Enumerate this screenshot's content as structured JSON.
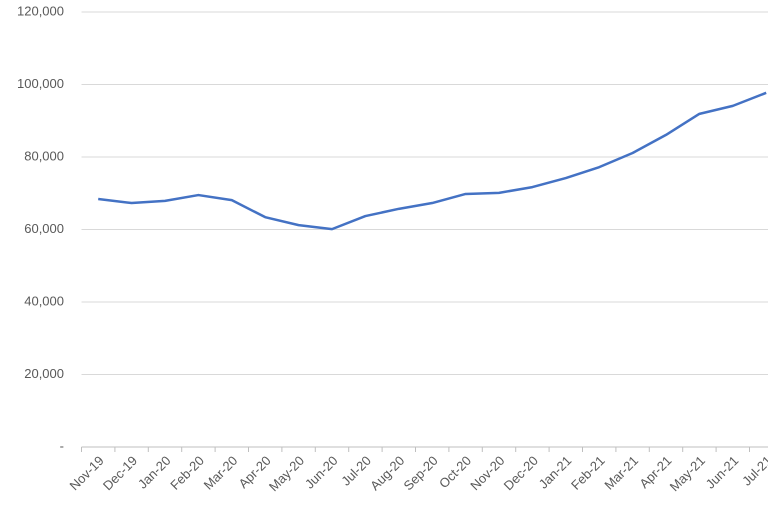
{
  "chart_data": {
    "type": "line",
    "categories": [
      "Nov-19",
      "Dec-19",
      "Jan-20",
      "Feb-20",
      "Mar-20",
      "Apr-20",
      "May-20",
      "Jun-20",
      "Jul-20",
      "Aug-20",
      "Sep-20",
      "Oct-20",
      "Nov-20",
      "Dec-20",
      "Jan-21",
      "Feb-21",
      "Mar-21",
      "Apr-21",
      "May-21",
      "Jun-21",
      "Jul-21"
    ],
    "series": [
      {
        "color": "#4472c4",
        "values": [
          68400,
          67300,
          67900,
          69500,
          68100,
          63400,
          61200,
          60100,
          63700,
          65700,
          67300,
          69800,
          70100,
          71700,
          74200,
          77200,
          81100,
          86100,
          91900,
          94100,
          97700
        ]
      }
    ],
    "ylim": [
      0,
      120000
    ],
    "yticks": [
      {
        "value": 0,
        "label": "-"
      },
      {
        "value": 20000,
        "label": "20,000"
      },
      {
        "value": 40000,
        "label": "40,000"
      },
      {
        "value": 60000,
        "label": "60,000"
      },
      {
        "value": 80000,
        "label": "80,000"
      },
      {
        "value": 100000,
        "label": "100,000"
      },
      {
        "value": 120000,
        "label": "120,000"
      }
    ],
    "grid": true
  }
}
